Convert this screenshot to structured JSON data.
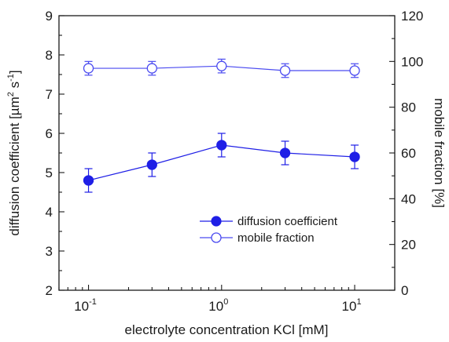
{
  "chart_data": {
    "type": "scatter",
    "x_scale": "log",
    "xlim": [
      0.06,
      20
    ],
    "xticks": [
      {
        "value": 0.1,
        "base": "10",
        "exp": "-1"
      },
      {
        "value": 1,
        "base": "10",
        "exp": "0"
      },
      {
        "value": 10,
        "base": "10",
        "exp": "1"
      }
    ],
    "xlabel": "electrolyte concentration KCl [mM]",
    "y_left": {
      "label_main": "diffusion coefficient [µm",
      "label_sup1": "2",
      "label_mid": " s",
      "label_sup2": "-1",
      "label_end": "]",
      "lim": [
        2,
        9
      ],
      "ticks": [
        "2",
        "3",
        "4",
        "5",
        "6",
        "7",
        "8",
        "9"
      ]
    },
    "y_right": {
      "label": "mobile fraction [%]",
      "lim": [
        0,
        120
      ],
      "ticks": [
        "0",
        "20",
        "40",
        "60",
        "80",
        "100",
        "120"
      ]
    },
    "x": [
      0.1,
      0.3,
      1,
      3,
      10
    ],
    "series": [
      {
        "name": "diffusion coefficient",
        "axis": "left",
        "values": [
          4.8,
          5.2,
          5.7,
          5.5,
          5.4
        ],
        "errors": [
          0.3,
          0.3,
          0.3,
          0.3,
          0.3
        ],
        "marker": "filled-circle",
        "color": "#1f1fe6"
      },
      {
        "name": "mobile fraction",
        "axis": "right",
        "values": [
          97,
          97,
          98,
          96,
          96
        ],
        "errors": [
          3,
          3,
          3,
          3,
          3
        ],
        "marker": "open-circle",
        "color": "#4a4af0"
      }
    ],
    "legend_position": "lower-right",
    "grid": false
  }
}
